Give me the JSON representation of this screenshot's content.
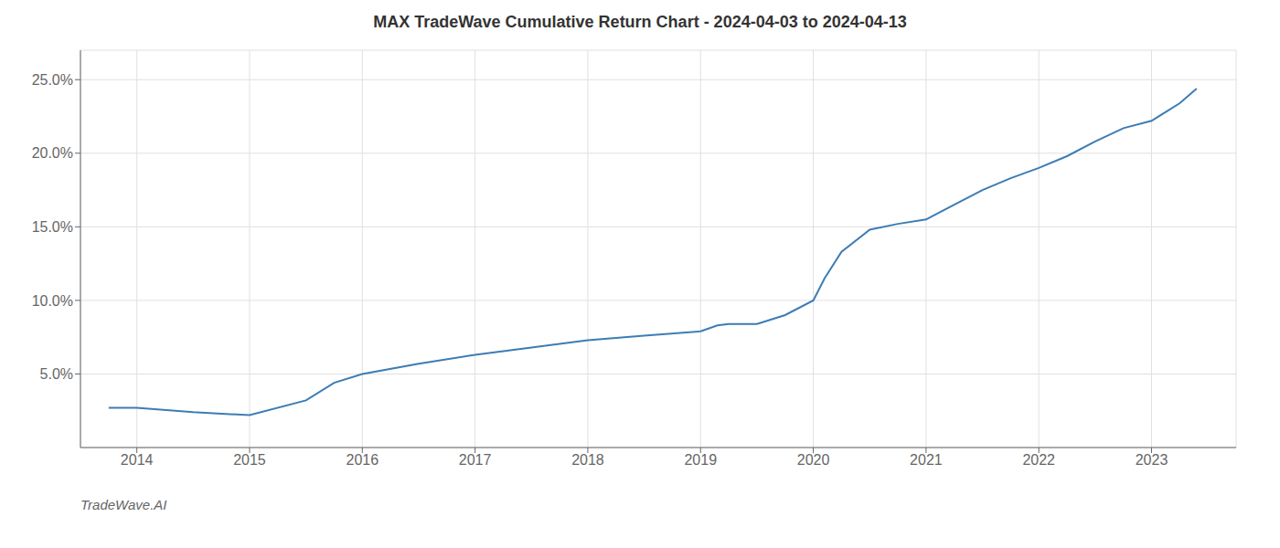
{
  "chart_data": {
    "type": "line",
    "title": "MAX TradeWave Cumulative Return Chart - 2024-04-03 to 2024-04-13",
    "annotations": [
      "TradeWave.AI"
    ],
    "x": [
      2013.75,
      2014.0,
      2014.5,
      2015.0,
      2015.5,
      2015.75,
      2016.0,
      2016.5,
      2017.0,
      2017.5,
      2018.0,
      2018.5,
      2019.0,
      2019.15,
      2019.25,
      2019.5,
      2019.75,
      2020.0,
      2020.1,
      2020.25,
      2020.5,
      2020.75,
      2021.0,
      2021.25,
      2021.5,
      2021.75,
      2022.0,
      2022.25,
      2022.5,
      2022.75,
      2023.0,
      2023.25,
      2023.4
    ],
    "values": [
      0.027,
      0.027,
      0.024,
      0.022,
      0.032,
      0.044,
      0.05,
      0.057,
      0.063,
      0.068,
      0.073,
      0.076,
      0.079,
      0.083,
      0.084,
      0.084,
      0.09,
      0.1,
      0.115,
      0.133,
      0.148,
      0.152,
      0.155,
      0.165,
      0.175,
      0.183,
      0.19,
      0.198,
      0.208,
      0.217,
      0.222,
      0.234,
      0.244
    ],
    "color": "#3d7cb5",
    "xlim": [
      2013.5,
      2023.75
    ],
    "ylim": [
      0.0,
      0.27
    ],
    "xticks": [
      2014,
      2015,
      2016,
      2017,
      2018,
      2019,
      2020,
      2021,
      2022,
      2023
    ],
    "yticks": [
      {
        "value": 0.05,
        "label": "5.0%"
      },
      {
        "value": 0.1,
        "label": "10.0%"
      },
      {
        "value": 0.15,
        "label": "15.0%"
      },
      {
        "value": 0.2,
        "label": "20.0%"
      },
      {
        "value": 0.25,
        "label": "25.0%"
      }
    ],
    "grid": true
  }
}
